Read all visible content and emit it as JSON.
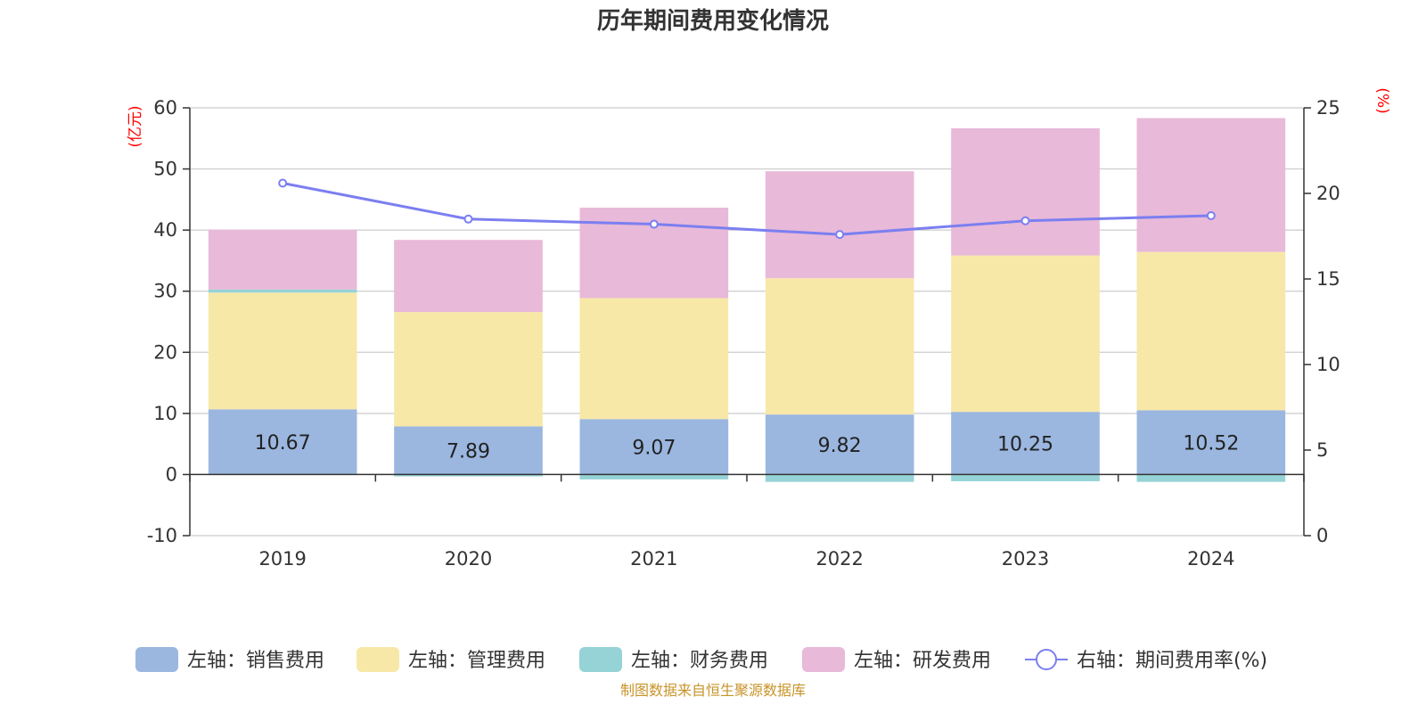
{
  "chart_data": {
    "type": "bar",
    "title": "历年期间费用变化情况",
    "categories": [
      "2019",
      "2020",
      "2021",
      "2022",
      "2023",
      "2024"
    ],
    "series": [
      {
        "name": "左轴：销售费用",
        "axis": "left",
        "kind": "bar",
        "color": "#9bb7e0",
        "values": [
          10.67,
          7.89,
          9.07,
          9.82,
          10.25,
          10.52
        ]
      },
      {
        "name": "左轴：管理费用",
        "axis": "left",
        "kind": "bar",
        "color": "#f7e8a8",
        "values": [
          19.1,
          18.7,
          19.8,
          22.3,
          25.6,
          25.9
        ]
      },
      {
        "name": "左轴：财务费用",
        "axis": "left",
        "kind": "bar",
        "color": "#95d3d6",
        "values": [
          0.5,
          -0.3,
          -0.8,
          -1.2,
          -1.1,
          -1.2
        ]
      },
      {
        "name": "左轴：研发费用",
        "axis": "left",
        "kind": "bar",
        "color": "#e8b9d9",
        "values": [
          9.8,
          11.8,
          14.8,
          17.5,
          20.8,
          21.9
        ]
      },
      {
        "name": "右轴：期间费用率(%)",
        "axis": "right",
        "kind": "line",
        "color": "#7b7ff0",
        "values": [
          20.6,
          18.5,
          18.2,
          17.6,
          18.4,
          18.7
        ]
      }
    ],
    "data_labels": [
      "10.67",
      "7.89",
      "9.07",
      "9.82",
      "10.25",
      "10.52"
    ],
    "left_axis": {
      "unit": "(亿元)",
      "min": -10,
      "max": 60,
      "step": 10
    },
    "right_axis": {
      "unit": "(%)",
      "min": 0,
      "max": 25,
      "step": 5
    },
    "grid": true,
    "legend_position": "bottom"
  },
  "source_note": "制图数据来自恒生聚源数据库"
}
